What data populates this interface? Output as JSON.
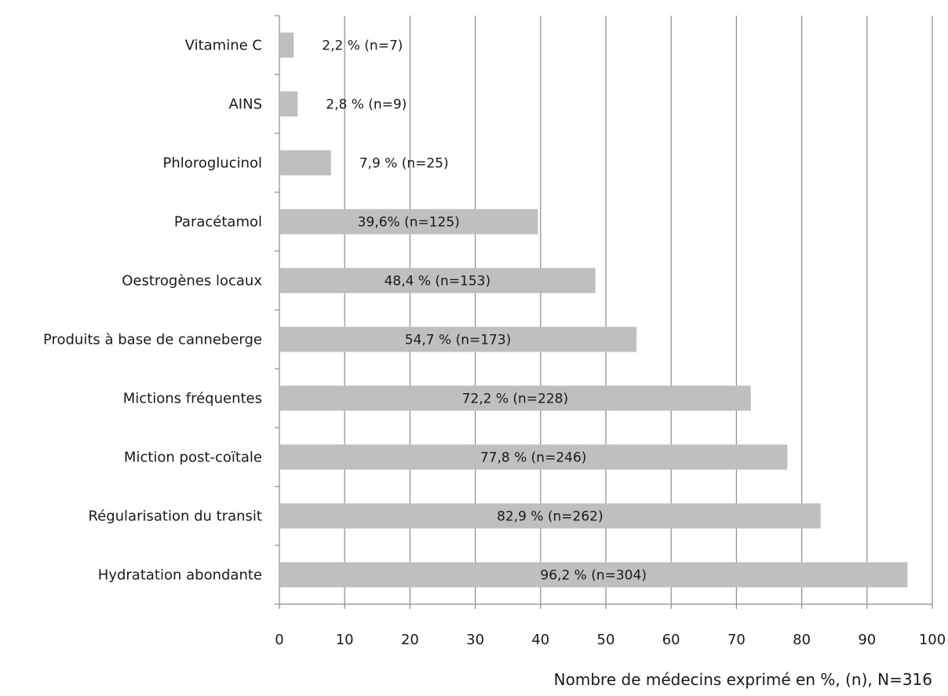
{
  "chart_data": {
    "type": "bar",
    "orientation": "horizontal",
    "categories": [
      "Vitamine C",
      "AINS",
      "Phloroglucinol",
      "Paracétamol",
      "Oestrogènes locaux",
      "Produits à base de canneberge",
      "Mictions fréquentes",
      "Miction post-coïtale",
      "Régularisation du transit",
      "Hydratation abondante"
    ],
    "values": [
      2.2,
      2.8,
      7.9,
      39.6,
      48.4,
      54.7,
      72.2,
      77.8,
      82.9,
      96.2
    ],
    "data_labels": [
      "2,2 % (n=7)",
      "2,8 % (n=9)",
      "7,9 % (n=25)",
      "39,6% (n=125)",
      "48,4 % (n=153)",
      "54,7 % (n=173)",
      "72,2 % (n=228)",
      "77,8 % (n=246)",
      "82,9 % (n=262)",
      "96,2 % (n=304)"
    ],
    "xlabel": "Nombre de médecins exprimé en %, (n), N=316",
    "ylabel": "",
    "title": "",
    "xlim": [
      0,
      100
    ],
    "xticks": [
      0,
      10,
      20,
      30,
      40,
      50,
      60,
      70,
      80,
      90,
      100
    ],
    "grid": "vertical",
    "legend": "none",
    "bar_color": "#bfbfbf",
    "grid_color": "#8c8c8c"
  }
}
